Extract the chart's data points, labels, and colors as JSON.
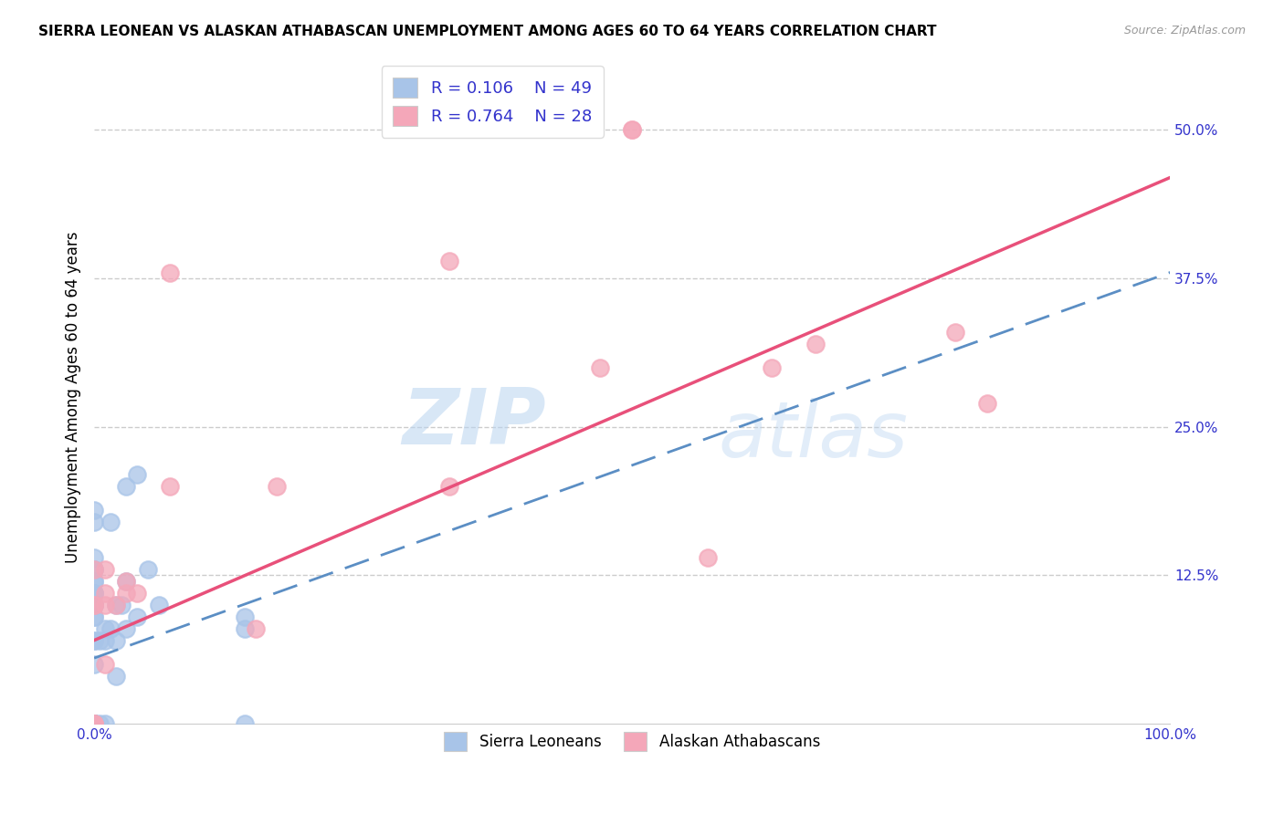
{
  "title": "SIERRA LEONEAN VS ALASKAN ATHABASCAN UNEMPLOYMENT AMONG AGES 60 TO 64 YEARS CORRELATION CHART",
  "source": "Source: ZipAtlas.com",
  "xlabel": "",
  "ylabel": "Unemployment Among Ages 60 to 64 years",
  "xlim": [
    0,
    1.0
  ],
  "ylim": [
    0,
    0.55
  ],
  "xticks": [
    0.0,
    0.25,
    0.5,
    0.75,
    1.0
  ],
  "xticklabels": [
    "0.0%",
    "",
    "",
    "",
    "100.0%"
  ],
  "yticks_right": [
    0.0,
    0.125,
    0.25,
    0.375,
    0.5
  ],
  "yticklabels_right": [
    "",
    "12.5%",
    "25.0%",
    "37.5%",
    "50.0%"
  ],
  "sierra_R": "0.106",
  "sierra_N": "49",
  "athabascan_R": "0.764",
  "athabascan_N": "28",
  "sierra_color": "#a8c4e8",
  "athabascan_color": "#f4a7b9",
  "sierra_line_color": "#5b8ec4",
  "athabascan_line_color": "#e8507a",
  "watermark_zip": "ZIP",
  "watermark_atlas": "atlas",
  "sierra_x": [
    0.0,
    0.0,
    0.0,
    0.0,
    0.0,
    0.0,
    0.0,
    0.0,
    0.0,
    0.0,
    0.0,
    0.0,
    0.0,
    0.0,
    0.0,
    0.0,
    0.0,
    0.0,
    0.0,
    0.0,
    0.0,
    0.0,
    0.0,
    0.0,
    0.0,
    0.0,
    0.0,
    0.0,
    0.005,
    0.005,
    0.01,
    0.01,
    0.01,
    0.015,
    0.015,
    0.02,
    0.02,
    0.02,
    0.025,
    0.03,
    0.03,
    0.03,
    0.04,
    0.04,
    0.05,
    0.06,
    0.14,
    0.14,
    0.14
  ],
  "sierra_y": [
    0.0,
    0.0,
    0.0,
    0.0,
    0.0,
    0.0,
    0.0,
    0.0,
    0.0,
    0.0,
    0.05,
    0.07,
    0.07,
    0.09,
    0.09,
    0.1,
    0.1,
    0.1,
    0.11,
    0.11,
    0.11,
    0.12,
    0.12,
    0.13,
    0.13,
    0.14,
    0.17,
    0.18,
    0.0,
    0.07,
    0.0,
    0.07,
    0.08,
    0.08,
    0.17,
    0.04,
    0.07,
    0.1,
    0.1,
    0.08,
    0.12,
    0.2,
    0.09,
    0.21,
    0.13,
    0.1,
    0.08,
    0.09,
    0.0
  ],
  "athabascan_x": [
    0.0,
    0.0,
    0.0,
    0.0,
    0.0,
    0.0,
    0.01,
    0.01,
    0.01,
    0.01,
    0.02,
    0.03,
    0.03,
    0.04,
    0.07,
    0.07,
    0.15,
    0.17,
    0.33,
    0.33,
    0.47,
    0.5,
    0.5,
    0.57,
    0.63,
    0.67,
    0.8,
    0.83
  ],
  "athabascan_y": [
    0.0,
    0.0,
    0.0,
    0.1,
    0.1,
    0.13,
    0.05,
    0.1,
    0.11,
    0.13,
    0.1,
    0.11,
    0.12,
    0.11,
    0.2,
    0.38,
    0.08,
    0.2,
    0.2,
    0.39,
    0.3,
    0.5,
    0.5,
    0.14,
    0.3,
    0.32,
    0.33,
    0.27
  ],
  "sierra_line_x0": 0.0,
  "sierra_line_y0": 0.055,
  "sierra_line_x1": 1.0,
  "sierra_line_y1": 0.38,
  "athabascan_line_x0": 0.0,
  "athabascan_line_y0": 0.07,
  "athabascan_line_x1": 1.0,
  "athabascan_line_y1": 0.46
}
